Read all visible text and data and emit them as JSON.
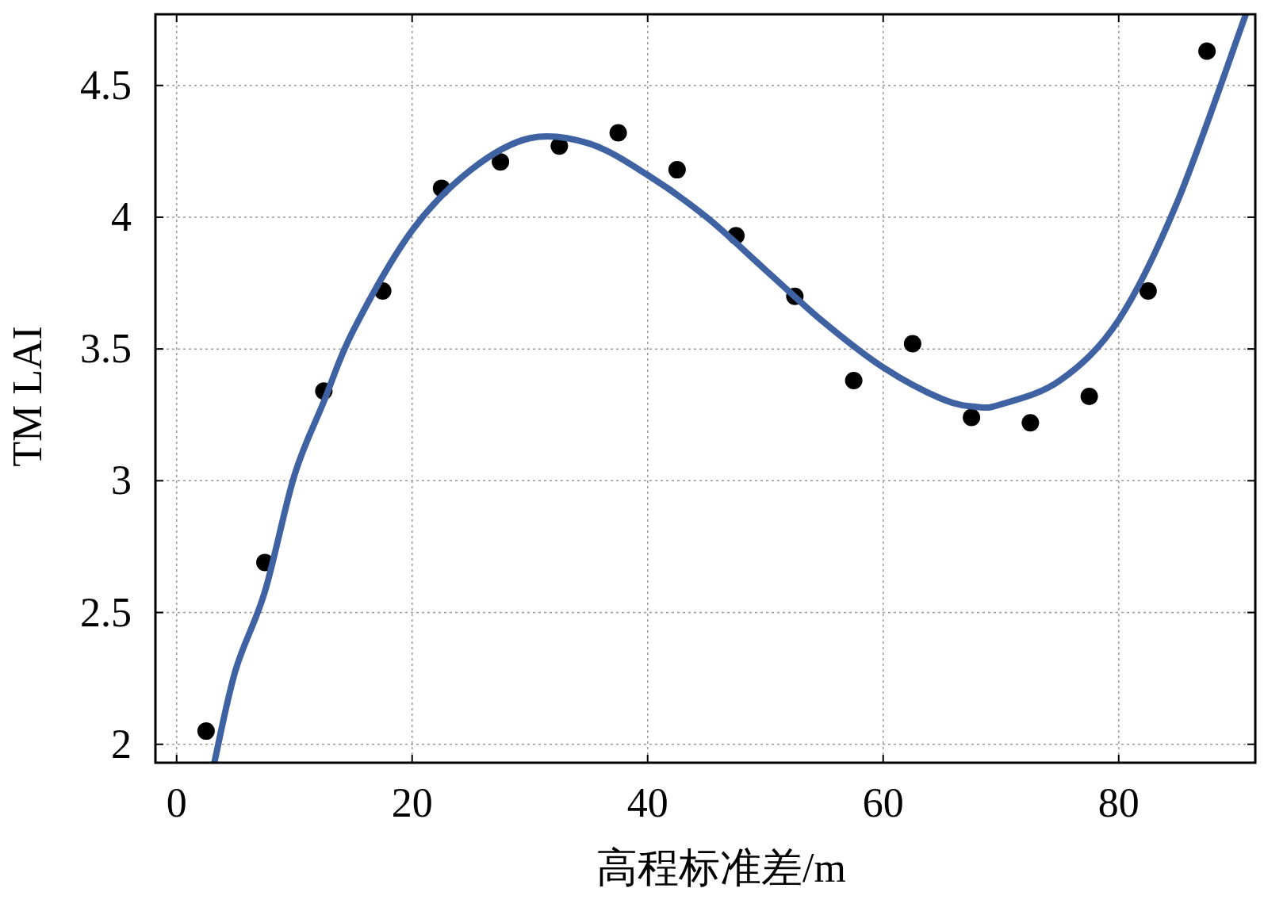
{
  "chart_data": {
    "type": "scatter",
    "xlabel": "高程标准差/m",
    "ylabel": "TM LAI",
    "xlim": [
      -1.8,
      91.6
    ],
    "ylim": [
      1.93,
      4.77
    ],
    "xticks": [
      0,
      20,
      40,
      60,
      80
    ],
    "yticks": [
      2,
      2.5,
      3,
      3.5,
      4,
      4.5
    ],
    "grid": true,
    "series": [
      {
        "color": "#000000",
        "marker": "circle",
        "x": [
          2.5,
          7.5,
          12.5,
          17.5,
          22.5,
          27.5,
          32.5,
          37.5,
          42.5,
          47.5,
          52.5,
          57.5,
          62.5,
          67.5,
          72.5,
          77.5,
          82.5,
          87.5
        ],
        "values": [
          2.05,
          2.69,
          3.34,
          3.72,
          4.11,
          4.21,
          4.27,
          4.32,
          4.18,
          3.93,
          3.7,
          3.38,
          3.52,
          3.24,
          3.22,
          3.32,
          3.72,
          4.63
        ]
      },
      {
        "type": "line",
        "color": "#3f62a3",
        "line_style": "solid",
        "marker": "none",
        "x": [
          3.2,
          5,
          7.5,
          10,
          12.5,
          15,
          20,
          25,
          30,
          35,
          40,
          45,
          50,
          55,
          60,
          65,
          68,
          70,
          75,
          80,
          85,
          90.8
        ],
        "values": [
          1.93,
          2.28,
          2.58,
          3.02,
          3.3,
          3.57,
          3.95,
          4.18,
          4.3,
          4.28,
          4.16,
          4.0,
          3.8,
          3.6,
          3.43,
          3.31,
          3.28,
          3.29,
          3.38,
          3.61,
          4.06,
          4.77
        ]
      }
    ]
  }
}
